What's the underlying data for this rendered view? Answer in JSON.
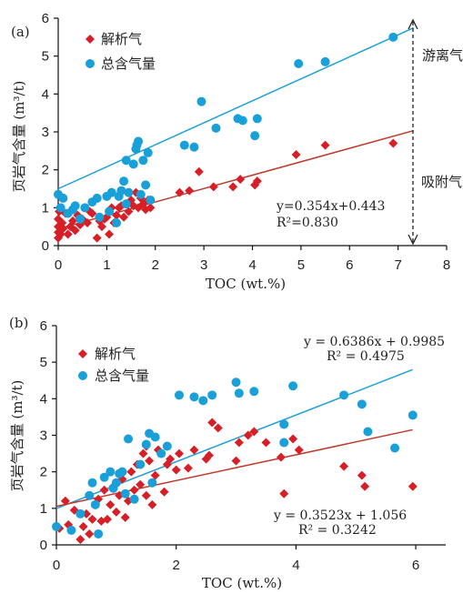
{
  "chart_data": [
    {
      "type": "scatter",
      "panel_label": "(a)",
      "xlabel": "TOC (wt.%)",
      "ylabel": "页岩气含量 (m³/t)",
      "xlim": [
        0,
        8
      ],
      "ylim": [
        0,
        6
      ],
      "xticks": [
        "0",
        "1",
        "2",
        "3",
        "4",
        "5",
        "6",
        "7",
        "8"
      ],
      "yticks": [
        "0",
        "1",
        "2",
        "3",
        "4",
        "5",
        "6"
      ],
      "legend": [
        "解析气",
        "总含气量"
      ],
      "legend_position": "top-left",
      "annotations": {
        "free_gas": "游离气",
        "adsorbed_gas": "吸附气",
        "equation": "y=0.354x+0.443",
        "r2": "R²=0.830"
      },
      "series": [
        {
          "name": "解析气",
          "marker": "diamond",
          "color": "#d71f27",
          "points": [
            [
              0,
              0.2
            ],
            [
              0,
              0.35
            ],
            [
              0,
              0.5
            ],
            [
              0,
              0.7
            ],
            [
              0.02,
              0.9
            ],
            [
              0.05,
              0.3
            ],
            [
              0.08,
              0.6
            ],
            [
              0.1,
              0.45
            ],
            [
              0.15,
              0.85
            ],
            [
              0.2,
              0.3
            ],
            [
              0.25,
              0.5
            ],
            [
              0.3,
              0.65
            ],
            [
              0.35,
              0.4
            ],
            [
              0.4,
              0.8
            ],
            [
              0.45,
              0.55
            ],
            [
              0.5,
              0.7
            ],
            [
              0.6,
              0.6
            ],
            [
              0.65,
              0.9
            ],
            [
              0.7,
              0.85
            ],
            [
              0.8,
              0.2
            ],
            [
              0.85,
              0.65
            ],
            [
              0.9,
              0.5
            ],
            [
              0.95,
              0.7
            ],
            [
              1.0,
              0.75
            ],
            [
              1.05,
              0.3
            ],
            [
              1.1,
              1.0
            ],
            [
              1.15,
              0.6
            ],
            [
              1.2,
              0.8
            ],
            [
              1.25,
              1.0
            ],
            [
              1.3,
              1.05
            ],
            [
              1.35,
              0.75
            ],
            [
              1.4,
              1.1
            ],
            [
              1.45,
              0.9
            ],
            [
              1.5,
              1.2
            ],
            [
              1.55,
              1.05
            ],
            [
              1.6,
              1.4
            ],
            [
              1.65,
              1.0
            ],
            [
              1.7,
              1.25
            ],
            [
              1.75,
              1.1
            ],
            [
              1.8,
              0.95
            ],
            [
              1.85,
              1.2
            ],
            [
              1.9,
              1.0
            ],
            [
              2.5,
              1.4
            ],
            [
              2.7,
              1.45
            ],
            [
              2.9,
              1.95
            ],
            [
              3.2,
              1.55
            ],
            [
              3.6,
              1.55
            ],
            [
              3.75,
              1.75
            ],
            [
              4.05,
              1.6
            ],
            [
              4.1,
              1.7
            ],
            [
              4.9,
              2.4
            ],
            [
              5.5,
              2.65
            ],
            [
              6.9,
              2.7
            ]
          ]
        },
        {
          "name": "总含气量",
          "marker": "circle",
          "color": "#1aa0d8",
          "points": [
            [
              0,
              1.35
            ],
            [
              0.05,
              1.0
            ],
            [
              0.1,
              1.25
            ],
            [
              0.2,
              0.85
            ],
            [
              0.3,
              0.95
            ],
            [
              0.35,
              1.05
            ],
            [
              0.45,
              0.7
            ],
            [
              0.55,
              1.0
            ],
            [
              0.7,
              1.15
            ],
            [
              0.8,
              1.25
            ],
            [
              0.85,
              0.75
            ],
            [
              1.0,
              1.3
            ],
            [
              1.05,
              0.9
            ],
            [
              1.1,
              1.4
            ],
            [
              1.2,
              0.6
            ],
            [
              1.25,
              1.3
            ],
            [
              1.3,
              1.45
            ],
            [
              1.35,
              1.7
            ],
            [
              1.4,
              1.1
            ],
            [
              1.4,
              2.25
            ],
            [
              1.45,
              1.4
            ],
            [
              1.55,
              2.15
            ],
            [
              1.6,
              2.55
            ],
            [
              1.62,
              2.65
            ],
            [
              1.65,
              2.75
            ],
            [
              1.7,
              1.35
            ],
            [
              1.75,
              2.25
            ],
            [
              1.8,
              1.6
            ],
            [
              1.85,
              2.45
            ],
            [
              1.9,
              1.2
            ],
            [
              2.6,
              2.65
            ],
            [
              2.8,
              2.6
            ],
            [
              2.95,
              3.8
            ],
            [
              3.25,
              3.1
            ],
            [
              3.7,
              3.35
            ],
            [
              3.8,
              3.3
            ],
            [
              4.05,
              2.9
            ],
            [
              4.1,
              3.35
            ],
            [
              4.95,
              4.8
            ],
            [
              5.5,
              4.85
            ],
            [
              6.9,
              5.5
            ]
          ]
        }
      ],
      "trendlines": [
        {
          "series": "总含气量",
          "slope": 0.58,
          "intercept": 1.5,
          "color": "#1aa0d8"
        },
        {
          "series": "解析气",
          "slope": 0.354,
          "intercept": 0.443,
          "color": "#c0392b"
        }
      ]
    },
    {
      "type": "scatter",
      "panel_label": "(b)",
      "xlabel": "TOC (wt.%)",
      "ylabel": "页岩气含量 (m³/t)",
      "xlim": [
        0,
        6.5
      ],
      "ylim": [
        0,
        6
      ],
      "xticks": [
        "0",
        "2",
        "4",
        "6"
      ],
      "yticks": [
        "0",
        "1",
        "2",
        "3",
        "4",
        "5",
        "6"
      ],
      "legend": [
        "解析气",
        "总含气量"
      ],
      "legend_position": "top-left",
      "annotations": {
        "eq_total": "y = 0.6386x + 0.9985",
        "r2_total": "R² = 0.4975",
        "eq_desorbed": "y = 0.3523x + 1.056",
        "r2_desorbed": "R² = 0.3242"
      },
      "series": [
        {
          "name": "解析气",
          "marker": "diamond",
          "color": "#d71f27",
          "points": [
            [
              0.05,
              0.45
            ],
            [
              0.15,
              1.2
            ],
            [
              0.2,
              0.55
            ],
            [
              0.3,
              0.95
            ],
            [
              0.4,
              0.15
            ],
            [
              0.45,
              0.5
            ],
            [
              0.5,
              0.85
            ],
            [
              0.55,
              0.3
            ],
            [
              0.6,
              0.7
            ],
            [
              0.7,
              1.25
            ],
            [
              0.75,
              0.65
            ],
            [
              0.8,
              1.5
            ],
            [
              0.85,
              0.7
            ],
            [
              0.9,
              1.1
            ],
            [
              0.95,
              1.6
            ],
            [
              1.0,
              0.9
            ],
            [
              1.05,
              1.35
            ],
            [
              1.1,
              1.8
            ],
            [
              1.15,
              0.75
            ],
            [
              1.2,
              1.2
            ],
            [
              1.25,
              2.0
            ],
            [
              1.3,
              1.5
            ],
            [
              1.35,
              2.2
            ],
            [
              1.4,
              1.65
            ],
            [
              1.45,
              2.5
            ],
            [
              1.5,
              1.35
            ],
            [
              1.5,
              2.7
            ],
            [
              1.55,
              2.3
            ],
            [
              1.6,
              1.1
            ],
            [
              1.65,
              1.9
            ],
            [
              1.7,
              2.6
            ],
            [
              1.8,
              1.45
            ],
            [
              1.85,
              2.2
            ],
            [
              1.9,
              2.35
            ],
            [
              2.0,
              2.05
            ],
            [
              2.05,
              2.5
            ],
            [
              2.2,
              2.1
            ],
            [
              2.3,
              2.6
            ],
            [
              2.5,
              2.35
            ],
            [
              2.55,
              2.45
            ],
            [
              2.6,
              3.35
            ],
            [
              2.7,
              3.2
            ],
            [
              3.0,
              2.3
            ],
            [
              3.05,
              2.8
            ],
            [
              3.2,
              3.0
            ],
            [
              3.3,
              3.1
            ],
            [
              3.5,
              2.8
            ],
            [
              3.75,
              2.4
            ],
            [
              3.8,
              1.4
            ],
            [
              3.95,
              2.9
            ],
            [
              4.05,
              2.6
            ],
            [
              4.8,
              2.15
            ],
            [
              5.1,
              1.9
            ],
            [
              5.15,
              1.6
            ],
            [
              5.95,
              1.6
            ]
          ]
        },
        {
          "name": "总含气量",
          "marker": "circle",
          "color": "#1aa0d8",
          "points": [
            [
              0,
              0.5
            ],
            [
              0.25,
              0.4
            ],
            [
              0.4,
              0.85
            ],
            [
              0.55,
              1.35
            ],
            [
              0.6,
              1.7
            ],
            [
              0.65,
              1.1
            ],
            [
              0.7,
              0.3
            ],
            [
              0.8,
              1.85
            ],
            [
              0.9,
              2.0
            ],
            [
              0.95,
              1.55
            ],
            [
              1.0,
              1.7
            ],
            [
              1.05,
              1.95
            ],
            [
              1.1,
              2.0
            ],
            [
              1.15,
              1.4
            ],
            [
              1.2,
              2.9
            ],
            [
              1.3,
              1.25
            ],
            [
              1.4,
              2.2
            ],
            [
              1.5,
              2.75
            ],
            [
              1.55,
              3.05
            ],
            [
              1.6,
              1.7
            ],
            [
              1.65,
              2.95
            ],
            [
              1.75,
              2.5
            ],
            [
              1.85,
              2.7
            ],
            [
              2.05,
              4.1
            ],
            [
              2.3,
              4.05
            ],
            [
              2.45,
              3.95
            ],
            [
              2.6,
              4.1
            ],
            [
              3.0,
              4.45
            ],
            [
              3.05,
              4.15
            ],
            [
              3.3,
              4.2
            ],
            [
              3.8,
              3.3
            ],
            [
              3.95,
              4.35
            ],
            [
              3.8,
              2.8
            ],
            [
              4.8,
              4.1
            ],
            [
              5.1,
              3.85
            ],
            [
              5.2,
              3.1
            ],
            [
              5.65,
              2.65
            ],
            [
              5.95,
              3.55
            ]
          ]
        }
      ],
      "trendlines": [
        {
          "series": "总含气量",
          "slope": 0.6386,
          "intercept": 0.9985,
          "color": "#1aa0d8"
        },
        {
          "series": "解析气",
          "slope": 0.3523,
          "intercept": 1.056,
          "color": "#c0392b"
        }
      ]
    }
  ]
}
